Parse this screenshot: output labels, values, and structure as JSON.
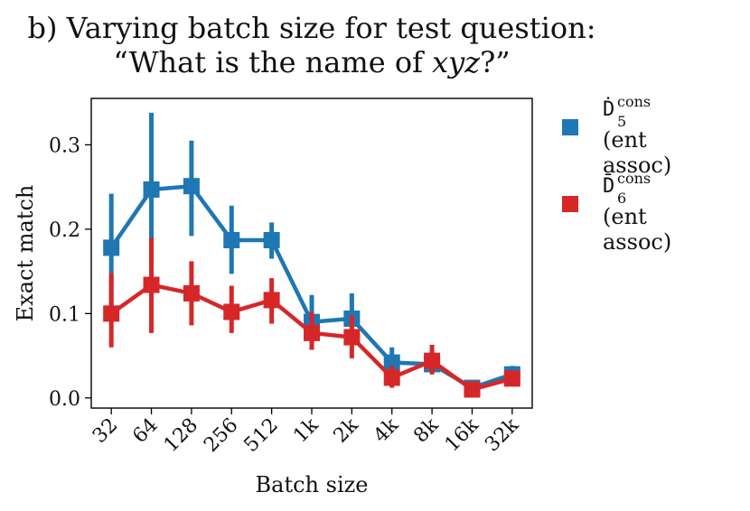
{
  "title_line1": "b) Varying batch size for test question:",
  "title_line2": "“What is the name of xyz?”",
  "chart_data": {
    "type": "line",
    "xlabel": "Batch size",
    "ylabel": "Exact match",
    "categories": [
      "32",
      "64",
      "128",
      "256",
      "512",
      "1k",
      "2k",
      "4k",
      "8k",
      "16k",
      "32k"
    ],
    "ylim": [
      -0.012,
      0.355
    ],
    "yticks": [
      0.0,
      0.1,
      0.2,
      0.3
    ],
    "ytick_labels": [
      "0.0",
      "0.1",
      "0.2",
      "0.3"
    ],
    "series": [
      {
        "name": "D5 cons (ent assoc)",
        "legend_symbol": "Ḋ",
        "legend_sub": "5",
        "legend_sup": "cons",
        "legend_desc": "(ent assoc)",
        "color": "#1f77b4",
        "values": [
          0.178,
          0.247,
          0.251,
          0.187,
          0.187,
          0.09,
          0.094,
          0.042,
          0.04,
          0.012,
          0.028
        ],
        "err_low": [
          0.1,
          0.155,
          0.192,
          0.147,
          0.165,
          0.06,
          0.063,
          0.025,
          0.028,
          0.005,
          0.018
        ],
        "err_high": [
          0.242,
          0.338,
          0.305,
          0.228,
          0.208,
          0.122,
          0.124,
          0.06,
          0.055,
          0.02,
          0.038
        ]
      },
      {
        "name": "D6 cons (ent assoc)",
        "legend_symbol": "D̄",
        "legend_sub": "6",
        "legend_sup": "cons",
        "legend_desc": "(ent assoc)",
        "color": "#d62728",
        "values": [
          0.1,
          0.134,
          0.124,
          0.102,
          0.116,
          0.077,
          0.072,
          0.024,
          0.044,
          0.01,
          0.023
        ],
        "err_low": [
          0.06,
          0.077,
          0.086,
          0.077,
          0.088,
          0.057,
          0.047,
          0.012,
          0.028,
          0.005,
          0.014
        ],
        "err_high": [
          0.148,
          0.19,
          0.162,
          0.133,
          0.142,
          0.102,
          0.098,
          0.038,
          0.063,
          0.017,
          0.033
        ]
      }
    ]
  }
}
